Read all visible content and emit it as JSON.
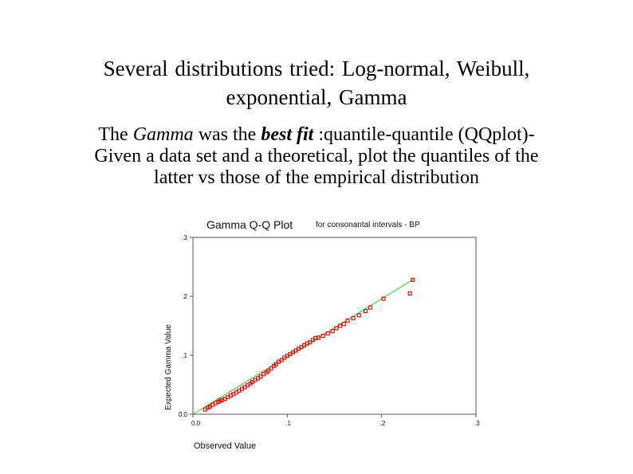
{
  "slide": {
    "title_line1": "Several distributions tried: Log-normal, Weibull,",
    "title_line2": "exponential, Gamma",
    "body_lead": "The ",
    "body_em": "Gamma",
    "body_mid": " was the ",
    "body_strong": "best fit",
    "body_line1_tail": " :quantile-quantile (QQplot)-",
    "body_line2": "Given a data set and a theoretical, plot the quantiles of the",
    "body_line3": "latter vs those of the empirical distribution"
  },
  "chart_data": {
    "type": "scatter",
    "title": "Gamma Q-Q Plot",
    "subtitle": "for consonantal intervals - BP",
    "xlabel": "Observed Value",
    "ylabel": "Expected Gamma Value",
    "xlim": [
      0,
      0.3
    ],
    "ylim": [
      0,
      0.3
    ],
    "x_ticks": [
      0.0,
      0.1,
      0.2,
      0.3
    ],
    "x_tick_labels": [
      "0.0",
      ".1",
      ".2",
      ".3"
    ],
    "y_ticks": [
      0.0,
      0.1,
      0.2,
      0.3
    ],
    "y_tick_labels": [
      "0.0",
      ".1",
      ".2",
      ".3"
    ],
    "reference_line": {
      "from": [
        0.0,
        0.0
      ],
      "to": [
        0.235,
        0.23
      ],
      "color": "#22cc22"
    },
    "marker_color": "#dd1111",
    "points": [
      [
        0.013,
        0.008
      ],
      [
        0.016,
        0.011
      ],
      [
        0.018,
        0.013
      ],
      [
        0.021,
        0.016
      ],
      [
        0.024,
        0.019
      ],
      [
        0.027,
        0.021
      ],
      [
        0.029,
        0.023
      ],
      [
        0.031,
        0.024
      ],
      [
        0.034,
        0.026
      ],
      [
        0.037,
        0.029
      ],
      [
        0.04,
        0.032
      ],
      [
        0.043,
        0.034
      ],
      [
        0.046,
        0.037
      ],
      [
        0.049,
        0.04
      ],
      [
        0.052,
        0.043
      ],
      [
        0.055,
        0.046
      ],
      [
        0.058,
        0.049
      ],
      [
        0.061,
        0.052
      ],
      [
        0.063,
        0.055
      ],
      [
        0.066,
        0.058
      ],
      [
        0.069,
        0.061
      ],
      [
        0.072,
        0.064
      ],
      [
        0.075,
        0.068
      ],
      [
        0.078,
        0.071
      ],
      [
        0.08,
        0.074
      ],
      [
        0.083,
        0.078
      ],
      [
        0.086,
        0.082
      ],
      [
        0.088,
        0.085
      ],
      [
        0.091,
        0.089
      ],
      [
        0.094,
        0.092
      ],
      [
        0.097,
        0.096
      ],
      [
        0.1,
        0.099
      ],
      [
        0.103,
        0.102
      ],
      [
        0.106,
        0.105
      ],
      [
        0.109,
        0.108
      ],
      [
        0.112,
        0.111
      ],
      [
        0.115,
        0.114
      ],
      [
        0.118,
        0.117
      ],
      [
        0.121,
        0.12
      ],
      [
        0.124,
        0.122
      ],
      [
        0.127,
        0.126
      ],
      [
        0.13,
        0.129
      ],
      [
        0.133,
        0.13
      ],
      [
        0.138,
        0.133
      ],
      [
        0.143,
        0.137
      ],
      [
        0.148,
        0.141
      ],
      [
        0.152,
        0.146
      ],
      [
        0.156,
        0.15
      ],
      [
        0.16,
        0.153
      ],
      [
        0.164,
        0.159
      ],
      [
        0.17,
        0.163
      ],
      [
        0.176,
        0.168
      ],
      [
        0.183,
        0.175
      ],
      [
        0.188,
        0.181
      ],
      [
        0.202,
        0.196
      ],
      [
        0.23,
        0.205
      ],
      [
        0.233,
        0.228
      ]
    ]
  }
}
